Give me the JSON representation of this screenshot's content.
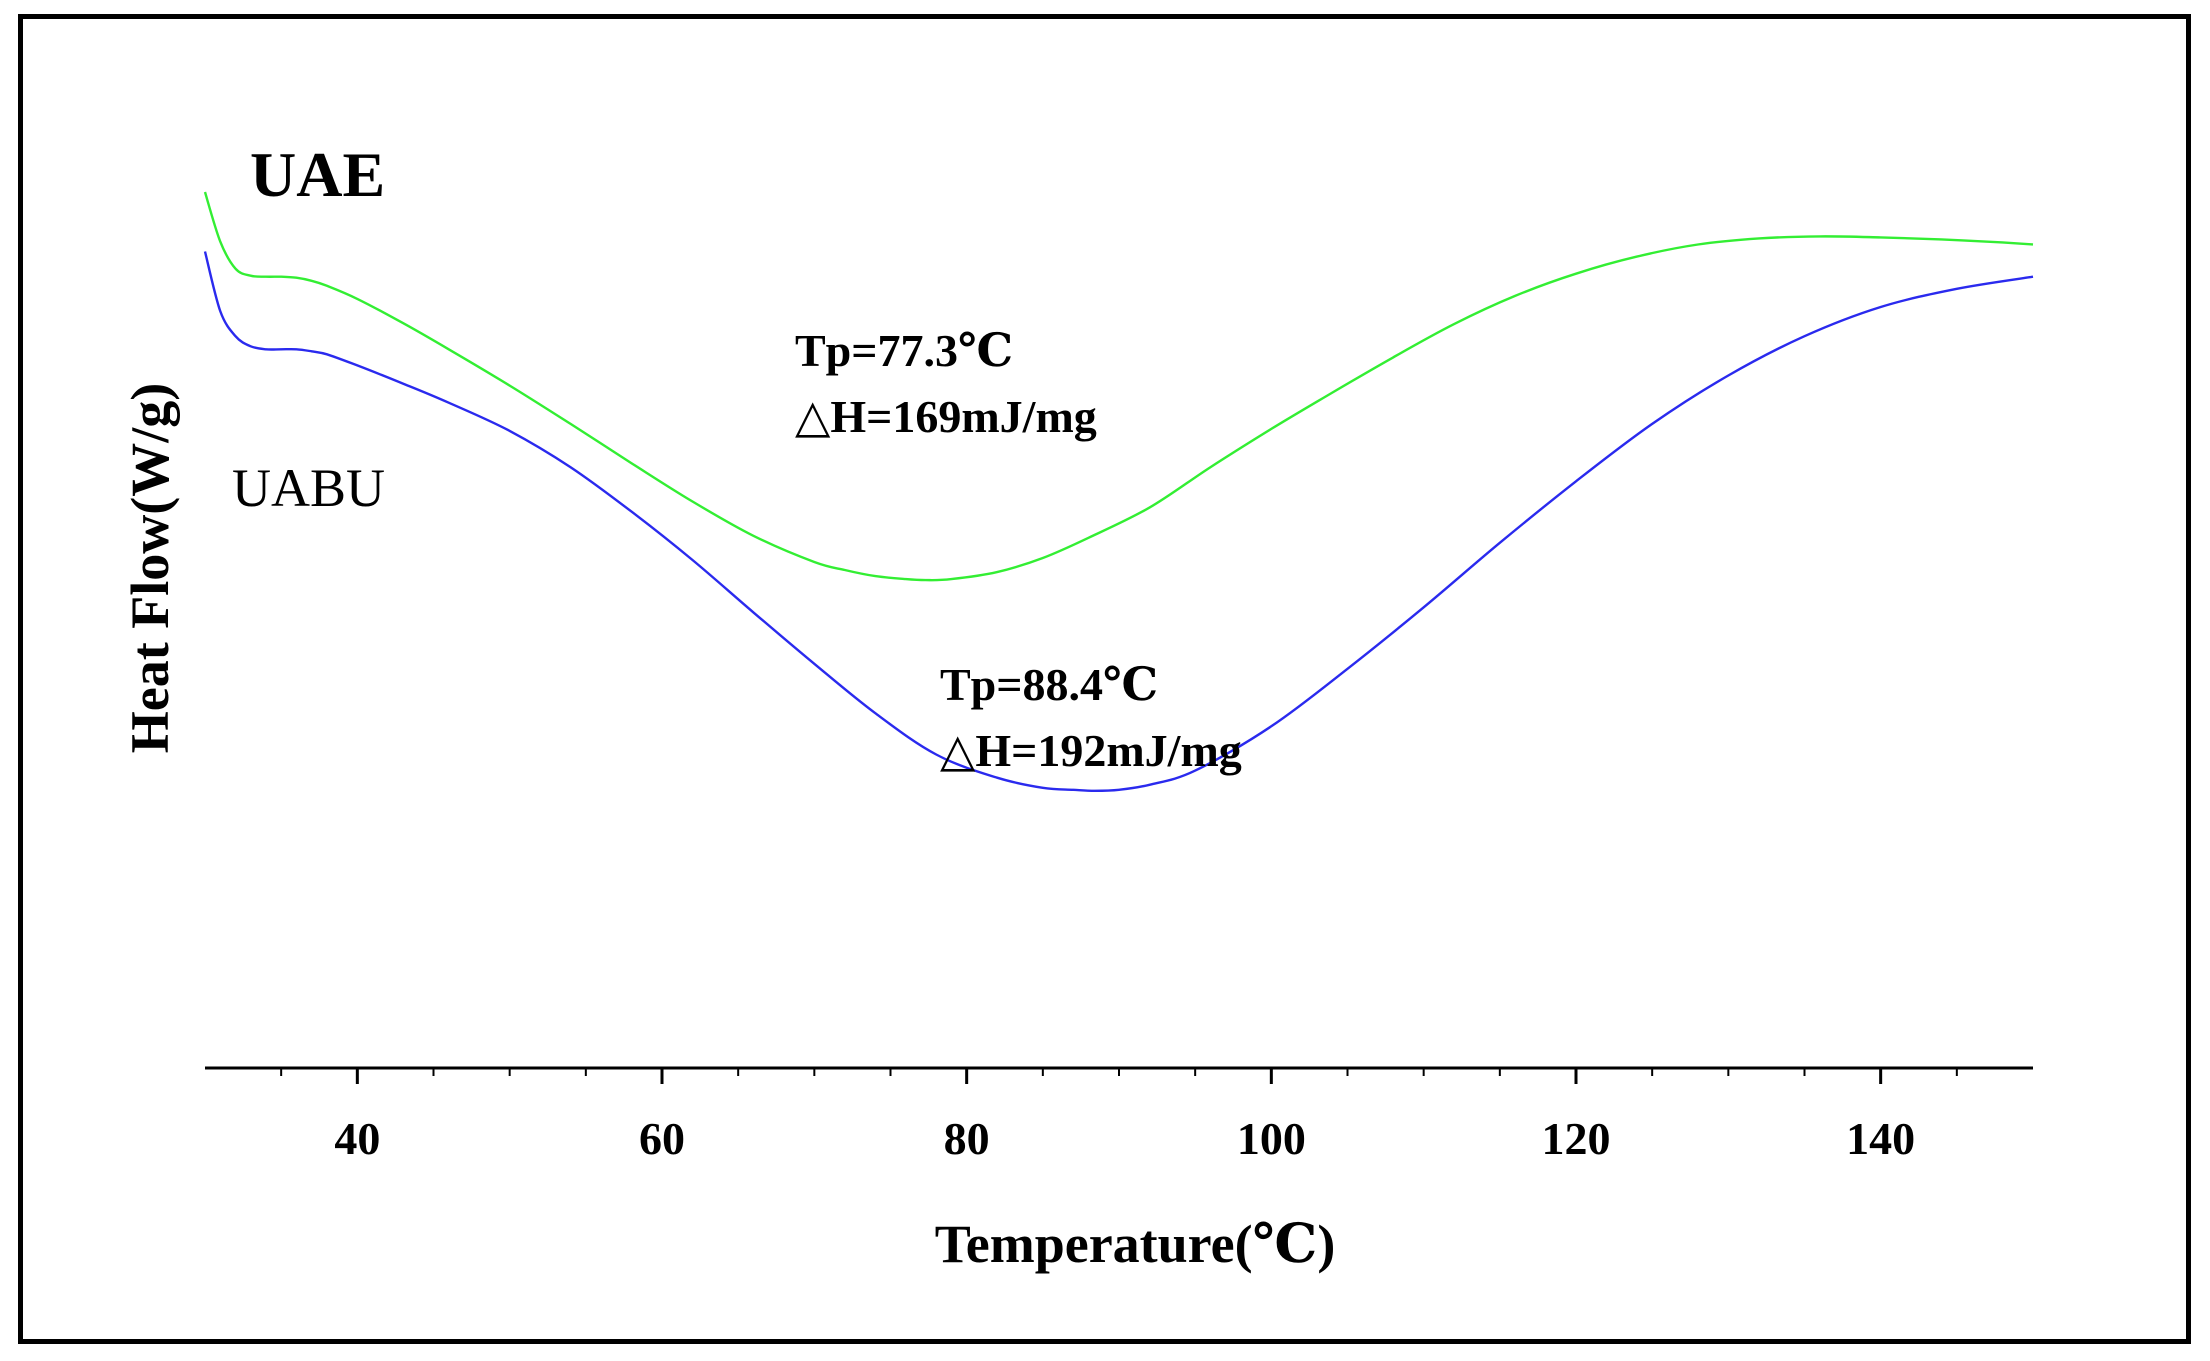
{
  "chart_data": {
    "type": "line",
    "title": "",
    "xlabel": "Temperature(℃)",
    "ylabel": "Heat Flow(W/g)",
    "xlim": [
      30,
      150
    ],
    "ylim": [
      0,
      100
    ],
    "xticks": [
      40,
      60,
      80,
      100,
      120,
      140
    ],
    "yticks_visible": false,
    "grid": false,
    "series": [
      {
        "name": "UAE",
        "color": "#33ee33",
        "x": [
          30,
          31,
          32,
          33,
          34,
          35,
          36,
          37,
          38,
          40,
          43,
          46,
          50,
          54,
          58,
          62,
          66,
          70,
          72,
          74,
          76,
          77.3,
          79,
          82,
          85,
          88,
          92,
          96,
          100,
          104,
          108,
          112,
          116,
          120,
          124,
          128,
          132,
          136,
          140,
          144,
          148,
          150
        ],
        "values": [
          86.9,
          82.0,
          79.3,
          78.6,
          78.5,
          78.5,
          78.4,
          78.1,
          77.6,
          76.3,
          73.9,
          71.3,
          67.7,
          63.9,
          60.0,
          56.2,
          52.8,
          50.2,
          49.4,
          48.8,
          48.5,
          48.4,
          48.5,
          49.2,
          50.6,
          52.6,
          55.6,
          59.6,
          63.4,
          67.0,
          70.5,
          73.8,
          76.6,
          78.8,
          80.5,
          81.7,
          82.3,
          82.5,
          82.4,
          82.2,
          81.9,
          81.7
        ]
      },
      {
        "name": "UABU",
        "color": "#2a2aee",
        "x": [
          30,
          31,
          32,
          33,
          34,
          35,
          36,
          37,
          38,
          40,
          43,
          46,
          50,
          54,
          58,
          62,
          66,
          70,
          74,
          78,
          82,
          85,
          87,
          88.4,
          90,
          92,
          95,
          100,
          105,
          110,
          115,
          120,
          125,
          130,
          135,
          140,
          145,
          150
        ],
        "values": [
          81.0,
          75.1,
          72.6,
          71.6,
          71.3,
          71.3,
          71.3,
          71.1,
          70.8,
          69.7,
          67.9,
          66.0,
          63.2,
          59.6,
          55.2,
          50.4,
          45.2,
          40.1,
          35.2,
          31.1,
          28.8,
          27.8,
          27.6,
          27.5,
          27.6,
          28.1,
          29.5,
          33.9,
          39.6,
          45.7,
          52.1,
          58.2,
          63.9,
          68.7,
          72.6,
          75.5,
          77.3,
          78.5
        ]
      }
    ],
    "annotations": [
      {
        "series": "UAE",
        "lines": [
          "Tp=77.3℃",
          "△H=169mJ/mg"
        ]
      },
      {
        "series": "UABU",
        "lines": [
          "Tp=88.4℃",
          "△H=192mJ/mg"
        ]
      }
    ]
  }
}
